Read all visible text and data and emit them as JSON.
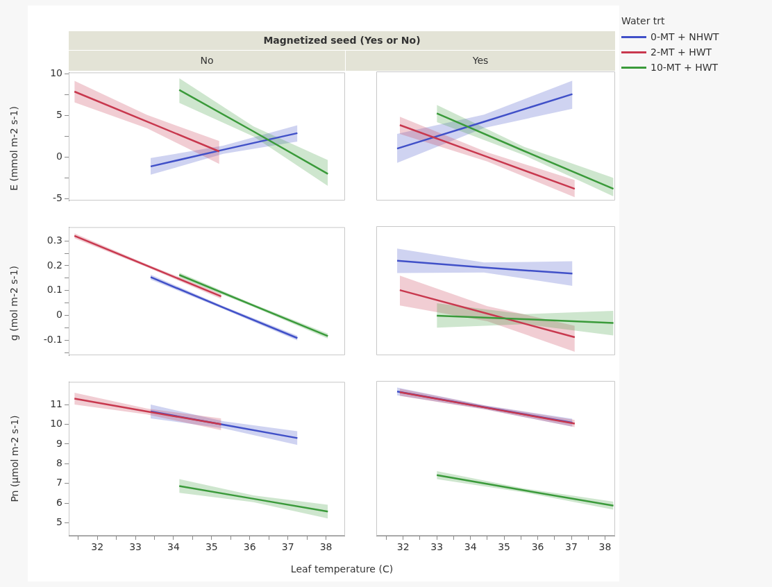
{
  "chart_data": [
    {
      "type": "line",
      "title": "Magnetized seed (Yes or No)",
      "subtitle": "No",
      "ylabel": "E (mmol m-2 s-1)",
      "xlim": [
        31.25,
        38.5
      ],
      "ylim": [
        -5.2,
        10.2
      ],
      "yticks": [
        -5,
        {
          "value": -2.5,
          "label": null
        },
        0,
        {
          "value": 2.5,
          "label": null
        },
        5,
        {
          "value": 7.5,
          "label": null
        },
        10
      ],
      "tick_labels": "y",
      "series": [
        {
          "color": "#4050c8",
          "x": [
            33.4,
            35.3,
            37.25
          ],
          "values": [
            -1.1,
            0.9,
            2.9
          ],
          "lower": [
            -2.1,
            0.4,
            1.9
          ],
          "upper": [
            -0.1,
            1.4,
            3.85
          ]
        },
        {
          "color": "#c8384e",
          "x": [
            31.4,
            33.3,
            35.2
          ],
          "values": [
            7.9,
            4.3,
            0.7
          ],
          "lower": [
            6.6,
            3.5,
            -0.8
          ],
          "upper": [
            9.2,
            5.1,
            1.95
          ]
        },
        {
          "color": "#3a9a3a",
          "x": [
            34.15,
            36.1,
            38.05
          ],
          "values": [
            8.1,
            3.1,
            -2.0
          ],
          "lower": [
            6.55,
            2.5,
            -3.45
          ],
          "upper": [
            9.5,
            3.7,
            -0.35
          ]
        }
      ]
    },
    {
      "type": "line",
      "subtitle": "Yes",
      "xlim": [
        31.2,
        38.3
      ],
      "ylim": [
        -5.2,
        10.2
      ],
      "tick_labels": false,
      "legend": "right",
      "legend_title": "Water trt",
      "series": [
        {
          "name": "0-MT + NHWT",
          "color": "#4050c8",
          "x": [
            31.82,
            34.4,
            37.03
          ],
          "values": [
            1.0,
            4.2,
            7.5
          ],
          "lower": [
            -0.7,
            3.45,
            5.75
          ],
          "upper": [
            2.75,
            5.05,
            9.1
          ]
        },
        {
          "name": "2-MT + HWT",
          "color": "#c8384e",
          "x": [
            31.9,
            34.5,
            37.1
          ],
          "values": [
            3.8,
            0.0,
            -3.8
          ],
          "lower": [
            2.75,
            -0.55,
            -4.8
          ],
          "upper": [
            4.8,
            0.55,
            -2.75
          ]
        },
        {
          "name": "10-MT + HWT",
          "color": "#3a9a3a",
          "x": [
            33.0,
            35.6,
            38.25
          ],
          "values": [
            5.2,
            0.7,
            -3.8
          ],
          "lower": [
            4.15,
            0.2,
            -4.7
          ],
          "upper": [
            6.2,
            1.2,
            -2.5
          ]
        }
      ]
    },
    {
      "type": "line",
      "ylabel": "g (mol m-2 s-1)",
      "xlim": [
        31.25,
        38.5
      ],
      "ylim": [
        -0.16,
        0.355
      ],
      "yticks": [
        {
          "value": -0.15,
          "label": null
        },
        -0.1,
        {
          "value": -0.05,
          "label": null
        },
        0,
        {
          "value": 0.05,
          "label": null
        },
        0.1,
        {
          "value": 0.15,
          "label": null
        },
        0.2,
        {
          "value": 0.25,
          "label": null
        },
        0.3
      ],
      "tick_labels": "y",
      "series": [
        {
          "color": "#4050c8",
          "x": [
            33.4,
            35.3,
            37.25
          ],
          "values": [
            0.154,
            0.032,
            -0.091
          ],
          "lower": [
            0.144,
            0.026,
            -0.101
          ],
          "upper": [
            0.164,
            0.038,
            -0.081
          ]
        },
        {
          "color": "#c8384e",
          "x": [
            31.4,
            33.3,
            35.25
          ],
          "values": [
            0.32,
            0.2,
            0.077
          ],
          "lower": [
            0.31,
            0.194,
            0.067
          ],
          "upper": [
            0.33,
            0.206,
            0.087
          ]
        },
        {
          "color": "#3a9a3a",
          "x": [
            34.15,
            36.1,
            38.05
          ],
          "values": [
            0.163,
            0.04,
            -0.083
          ],
          "lower": [
            0.153,
            0.034,
            -0.093
          ],
          "upper": [
            0.173,
            0.046,
            -0.073
          ]
        }
      ]
    },
    {
      "type": "line",
      "xlim": [
        31.2,
        38.3
      ],
      "ylim": [
        -0.16,
        0.355
      ],
      "tick_labels": false,
      "series": [
        {
          "color": "#4050c8",
          "x": [
            31.82,
            34.4,
            37.03
          ],
          "values": [
            0.217,
            0.19,
            0.166
          ],
          "lower": [
            0.168,
            0.17,
            0.117
          ],
          "upper": [
            0.266,
            0.21,
            0.215
          ]
        },
        {
          "color": "#c8384e",
          "x": [
            31.9,
            34.5,
            37.1
          ],
          "values": [
            0.1,
            0.006,
            -0.088
          ],
          "lower": [
            0.039,
            -0.024,
            -0.146
          ],
          "upper": [
            0.158,
            0.036,
            -0.042
          ]
        },
        {
          "color": "#3a9a3a",
          "x": [
            33.0,
            35.6,
            38.25
          ],
          "values": [
            -0.002,
            -0.016,
            -0.031
          ],
          "lower": [
            -0.05,
            -0.036,
            -0.081
          ],
          "upper": [
            0.048,
            0.004,
            0.017
          ]
        }
      ]
    },
    {
      "type": "line",
      "ylabel": "Pn (µmol m-2 s-1)",
      "xlabel": "Leaf temperature (C)",
      "xlim": [
        31.25,
        38.5
      ],
      "ylim": [
        4.35,
        12.15
      ],
      "xticks": [
        {
          "value": 31.5,
          "label": null
        },
        32,
        {
          "value": 32.5,
          "label": null
        },
        33,
        {
          "value": 33.5,
          "label": null
        },
        34,
        {
          "value": 34.5,
          "label": null
        },
        35,
        {
          "value": 35.5,
          "label": null
        },
        36,
        {
          "value": 36.5,
          "label": null
        },
        37,
        {
          "value": 37.5,
          "label": null
        },
        38
      ],
      "yticks": [
        5,
        6,
        7,
        8,
        9,
        10,
        11
      ],
      "series": [
        {
          "color": "#4050c8",
          "x": [
            33.4,
            35.3,
            37.25
          ],
          "values": [
            10.65,
            9.98,
            9.3
          ],
          "lower": [
            10.3,
            9.8,
            8.95
          ],
          "upper": [
            11.0,
            10.16,
            9.65
          ]
        },
        {
          "color": "#c8384e",
          "x": [
            31.4,
            33.3,
            35.25
          ],
          "values": [
            11.3,
            10.65,
            10.0
          ],
          "lower": [
            11.0,
            10.5,
            9.7
          ],
          "upper": [
            11.6,
            10.8,
            10.3
          ]
        },
        {
          "color": "#3a9a3a",
          "x": [
            34.15,
            36.1,
            38.05
          ],
          "values": [
            6.87,
            6.22,
            5.57
          ],
          "lower": [
            6.52,
            6.05,
            5.22
          ],
          "upper": [
            7.22,
            6.39,
            5.92
          ]
        }
      ]
    },
    {
      "type": "line",
      "xlim": [
        31.2,
        38.3
      ],
      "ylim": [
        4.35,
        12.15
      ],
      "xticks": [
        {
          "value": 31.5,
          "label": null
        },
        32,
        {
          "value": 32.5,
          "label": null
        },
        33,
        {
          "value": 33.5,
          "label": null
        },
        34,
        {
          "value": 34.5,
          "label": null
        },
        35,
        {
          "value": 35.5,
          "label": null
        },
        36,
        {
          "value": 36.5,
          "label": null
        },
        37,
        {
          "value": 37.5,
          "label": null
        },
        38
      ],
      "tick_labels": "x",
      "series": [
        {
          "color": "#4050c8",
          "x": [
            31.82,
            34.4,
            37.03
          ],
          "values": [
            11.62,
            10.83,
            10.04
          ],
          "lower": [
            11.42,
            10.73,
            9.84
          ],
          "upper": [
            11.82,
            10.93,
            10.24
          ]
        },
        {
          "color": "#c8384e",
          "x": [
            31.9,
            34.5,
            37.1
          ],
          "values": [
            11.58,
            10.79,
            10.0
          ],
          "lower": [
            11.4,
            10.69,
            9.82
          ],
          "upper": [
            11.76,
            10.89,
            10.18
          ]
        },
        {
          "color": "#3a9a3a",
          "x": [
            33.0,
            35.6,
            38.25
          ],
          "values": [
            7.4,
            6.63,
            5.86
          ],
          "lower": [
            7.2,
            6.53,
            5.66
          ],
          "upper": [
            7.6,
            6.73,
            6.06
          ]
        }
      ]
    }
  ]
}
